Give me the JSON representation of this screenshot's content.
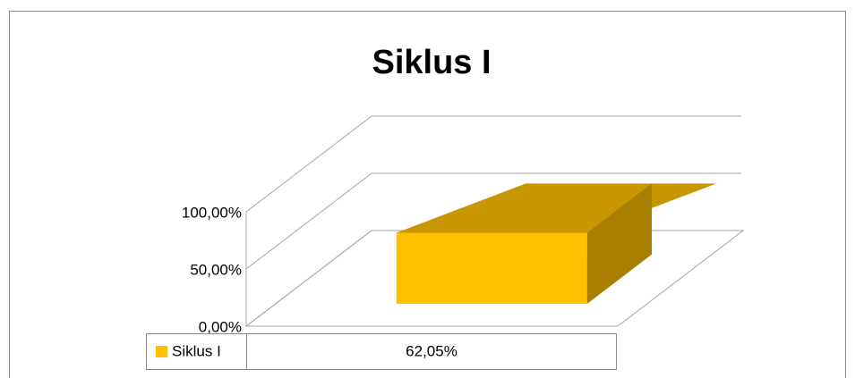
{
  "chart_data": {
    "type": "bar3d",
    "title": "Siklus I",
    "categories": [
      null
    ],
    "series": [
      {
        "name": "Siklus I",
        "color": "#ffc000",
        "values": [
          62.05
        ],
        "value_labels": [
          "62,05%"
        ]
      }
    ],
    "ylim": [
      0,
      100
    ],
    "yticks": [
      {
        "value": 0,
        "label": "0,00%"
      },
      {
        "value": 50,
        "label": "50,00%"
      },
      {
        "value": 100,
        "label": "100,00%"
      }
    ],
    "grid": true,
    "data_table": true
  }
}
